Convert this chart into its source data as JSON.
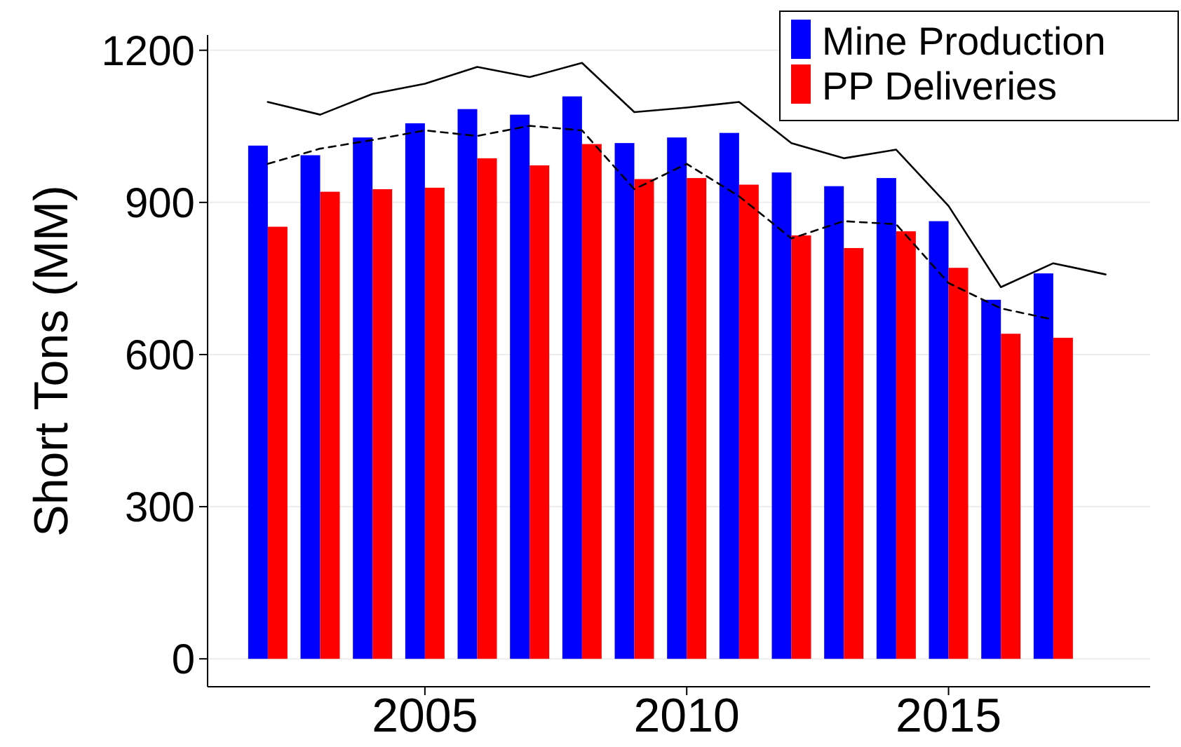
{
  "chart_data": {
    "type": "bar",
    "ylabel": "Short Tons (MM)",
    "x": [
      2002,
      2003,
      2004,
      2005,
      2006,
      2007,
      2008,
      2009,
      2010,
      2011,
      2012,
      2013,
      2014,
      2015,
      2016,
      2017
    ],
    "series": [
      {
        "name": "Mine Production",
        "color": "#0000ff",
        "values": [
          1012,
          993,
          1028,
          1056,
          1084,
          1073,
          1109,
          1017,
          1028,
          1037,
          959,
          932,
          948,
          863,
          708,
          760
        ]
      },
      {
        "name": "PP Deliveries",
        "color": "#ff0000",
        "values": [
          852,
          921,
          926,
          929,
          987,
          973,
          1015,
          946,
          948,
          935,
          835,
          810,
          843,
          771,
          641,
          633
        ]
      },
      {
        "type": "line",
        "color": "#000000",
        "line_style": "solid",
        "x": [
          2002,
          2003,
          2004,
          2005,
          2006,
          2007,
          2008,
          2009,
          2010,
          2011,
          2012,
          2013,
          2014,
          2015,
          2016,
          2017,
          2018
        ],
        "values": [
          1098,
          1073,
          1114,
          1134,
          1167,
          1147,
          1175,
          1078,
          1087,
          1098,
          1017,
          987,
          1004,
          893,
          733,
          780,
          758
        ]
      },
      {
        "type": "line",
        "color": "#000000",
        "line_style": "dashed",
        "x": [
          2002,
          2003,
          2004,
          2005,
          2006,
          2007,
          2008,
          2009,
          2010,
          2011,
          2012,
          2013,
          2014,
          2015,
          2016,
          2017
        ],
        "values": [
          976,
          1006,
          1023,
          1042,
          1031,
          1051,
          1042,
          926,
          976,
          912,
          829,
          863,
          857,
          741,
          691,
          669
        ]
      }
    ],
    "xlim": [
      2000.85,
      2018.85
    ],
    "xticks": [
      2005,
      2010,
      2015
    ],
    "ylim": [
      -55,
      1230
    ],
    "yticks": [
      0,
      300,
      600,
      900,
      1200
    ],
    "grid": "y",
    "legend": "top right"
  }
}
